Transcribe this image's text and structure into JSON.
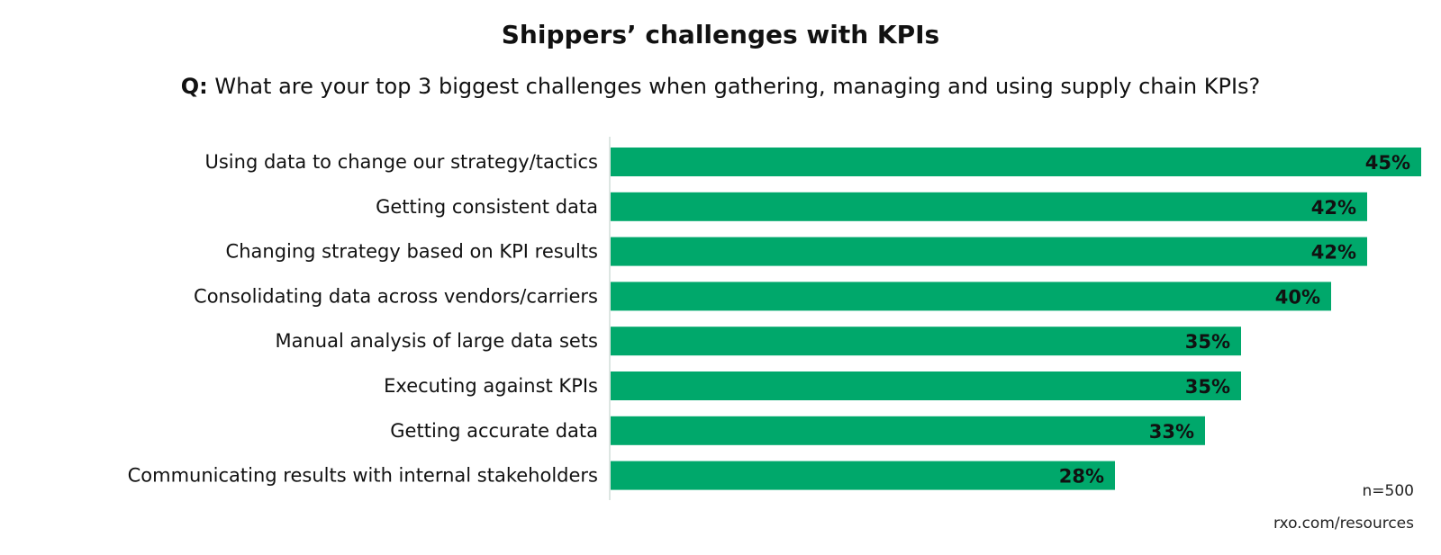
{
  "title": "Shippers’ challenges with KPIs",
  "question_prefix": "Q:",
  "question": "What are your top 3 biggest challenges when gathering, managing and using supply chain KPIs?",
  "sample_size": "n=500",
  "source": "rxo.com/resources",
  "colors": {
    "bar": "#00a86b",
    "axis": "#dde6e2",
    "text": "#111111"
  },
  "chart_data": {
    "type": "bar",
    "orientation": "horizontal",
    "categories": [
      "Using data to change our strategy/tactics",
      "Getting consistent data",
      "Changing strategy based on KPI results",
      "Consolidating data across vendors/carriers",
      "Manual analysis of large data sets",
      "Executing against KPIs",
      "Getting accurate data",
      "Communicating results with internal stakeholders"
    ],
    "values": [
      45,
      42,
      42,
      40,
      35,
      35,
      33,
      28
    ],
    "data_labels": [
      "45%",
      "42%",
      "42%",
      "40%",
      "35%",
      "35%",
      "33%",
      "28%"
    ],
    "unit": "%",
    "xlim": [
      0,
      45
    ],
    "grid": false,
    "legend": "none"
  }
}
